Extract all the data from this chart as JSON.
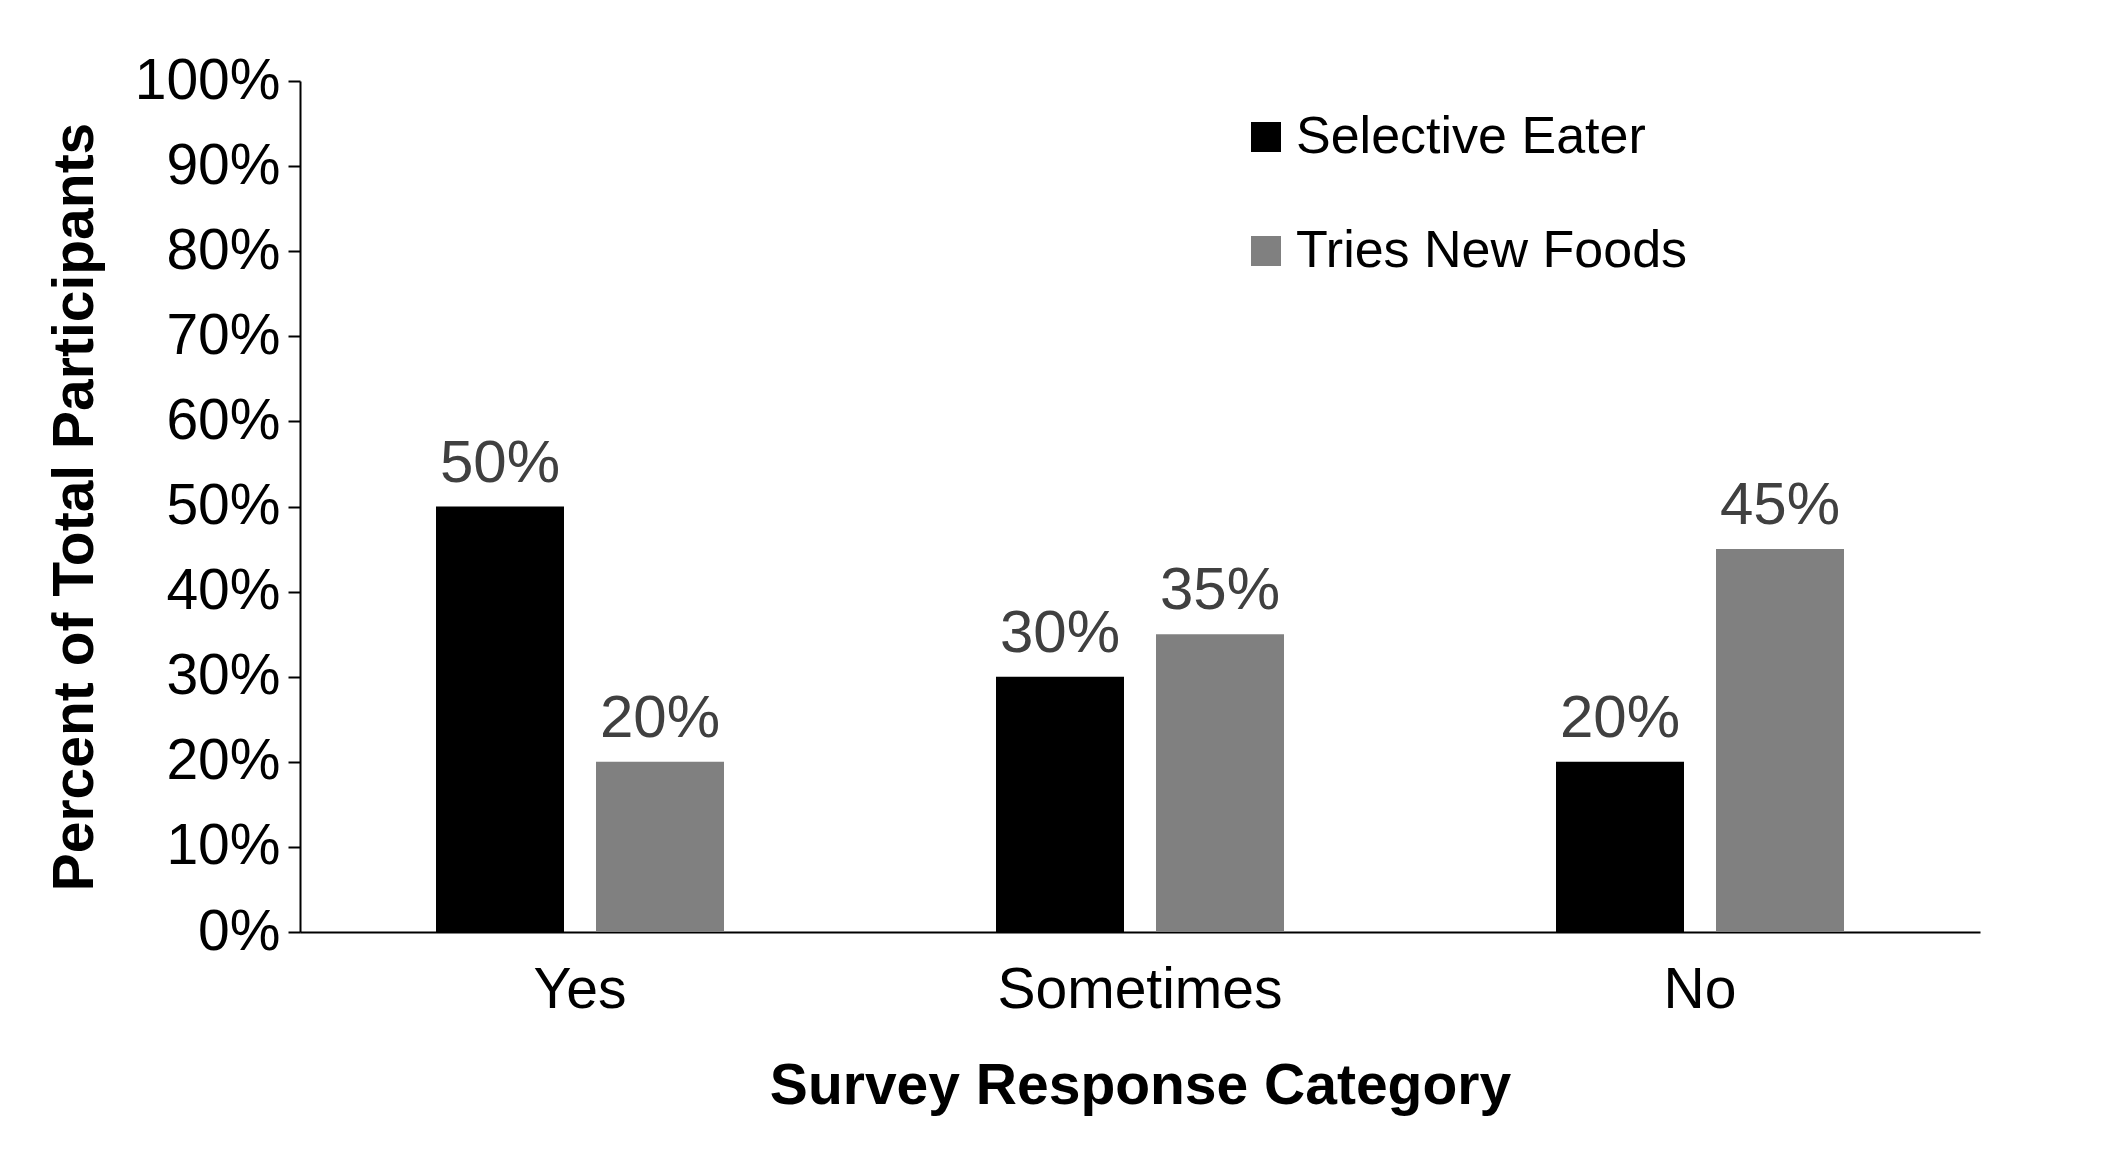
{
  "chart_data": {
    "type": "bar",
    "xlabel": "Survey Response Category",
    "ylabel": "Percent of Total Participants",
    "categories": [
      "Yes",
      "Sometimes",
      "No"
    ],
    "series": [
      {
        "name": "Selective Eater",
        "color": "#000000",
        "values": [
          50,
          30,
          20
        ],
        "value_labels": [
          "50%",
          "30%",
          "20%"
        ]
      },
      {
        "name": "Tries New Foods",
        "color": "#808080",
        "values": [
          20,
          35,
          45
        ],
        "value_labels": [
          "20%",
          "35%",
          "45%"
        ]
      }
    ],
    "ylim": [
      0,
      100
    ],
    "yticks": [
      {
        "value": 0,
        "label": "0%"
      },
      {
        "value": 10,
        "label": "10%"
      },
      {
        "value": 20,
        "label": "20%"
      },
      {
        "value": 30,
        "label": "30%"
      },
      {
        "value": 40,
        "label": "40%"
      },
      {
        "value": 50,
        "label": "50%"
      },
      {
        "value": 60,
        "label": "60%"
      },
      {
        "value": 70,
        "label": "70%"
      },
      {
        "value": 80,
        "label": "80%"
      },
      {
        "value": 90,
        "label": "90%"
      },
      {
        "value": 100,
        "label": "100%"
      }
    ],
    "grid": false,
    "legend": "top right"
  }
}
